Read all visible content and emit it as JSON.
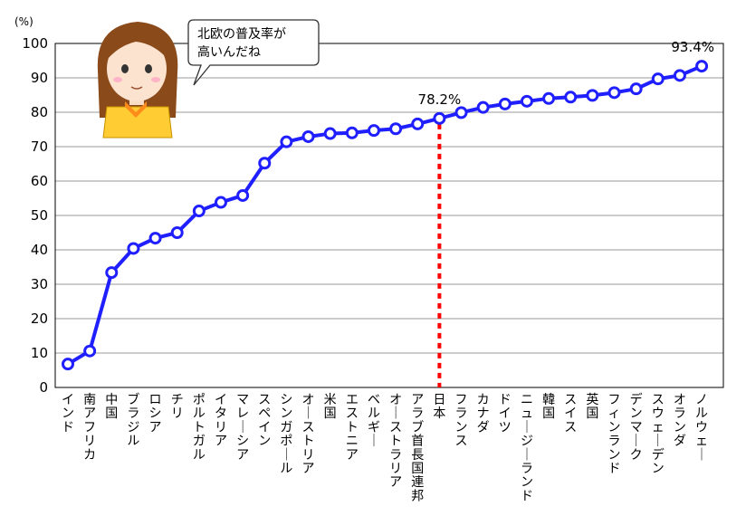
{
  "chart_data": {
    "type": "line",
    "unit_label": "(%)",
    "ylim": [
      0,
      100
    ],
    "yticks": [
      0,
      10,
      20,
      30,
      40,
      50,
      60,
      70,
      80,
      90,
      100
    ],
    "grid": true,
    "categories": [
      "インド",
      "南アフリカ",
      "中国",
      "ブラジル",
      "ロシア",
      "チリ",
      "ポルトガル",
      "イタリア",
      "マレーシア",
      "スペイン",
      "シンガポール",
      "オーストリア",
      "米国",
      "エストニア",
      "ベルギー",
      "オーストラリア",
      "アラブ首長国連邦",
      "日本",
      "フランス",
      "カナダ",
      "ドイツ",
      "ニュージーランド",
      "韓国",
      "スイス",
      "英国",
      "フィンランド",
      "デンマーク",
      "スウェーデン",
      "オランダ",
      "ノルウェー"
    ],
    "series": [
      {
        "values": [
          6.8,
          10.6,
          33.4,
          40.4,
          43.4,
          45.0,
          51.3,
          53.8,
          55.8,
          65.2,
          71.4,
          72.9,
          73.8,
          74.0,
          74.7,
          75.2,
          76.6,
          78.2,
          79.9,
          81.4,
          82.4,
          83.2,
          84.0,
          84.4,
          84.9,
          85.7,
          86.8,
          89.7,
          90.7,
          93.4
        ]
      }
    ],
    "annotations": [
      {
        "category": "日本",
        "text": "78.2%"
      },
      {
        "category": "ノルウェー",
        "text": "93.4%"
      }
    ],
    "highlight_category": "日本",
    "colors": {
      "line": "#1f1fff",
      "marker_fill": "#ffffff",
      "highlight": "#ff0000",
      "grid": "#999999"
    }
  },
  "speech_bubble": {
    "lines": [
      "北欧の普及率が",
      "高いんだね"
    ]
  },
  "character": {
    "icon": "girl-character-illustration"
  }
}
